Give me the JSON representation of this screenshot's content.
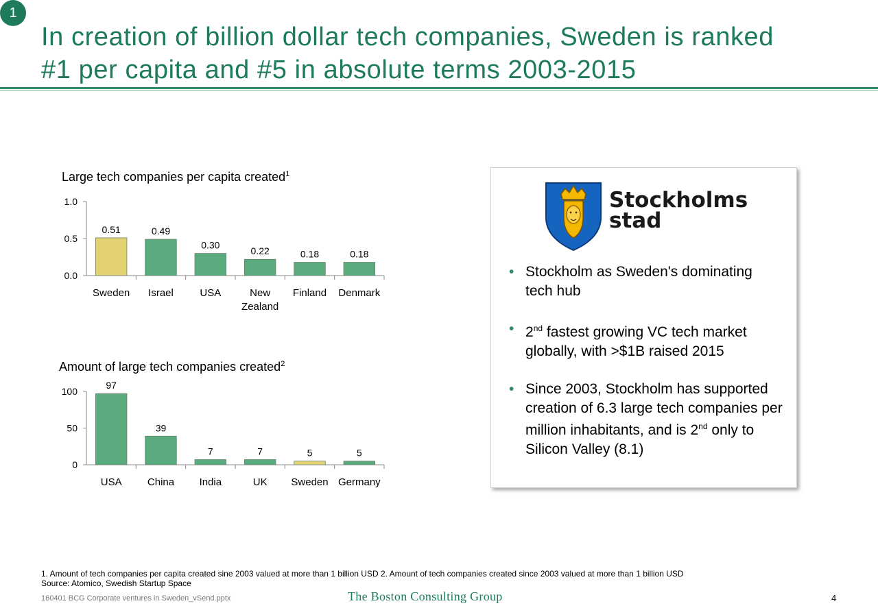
{
  "badge": "1",
  "title_line1": "In creation of billion dollar tech companies, Sweden is ranked",
  "title_line2": "#1 per capita and #5 in absolute terms 2003-2015",
  "colors": {
    "green": "#5aab7e",
    "highlight": "#e3d274",
    "accent": "#1d7a5b"
  },
  "chart_data": [
    {
      "type": "bar",
      "title": "Large tech companies per capita created",
      "title_sup": "1",
      "categories": [
        "Sweden",
        "Israel",
        "USA",
        "New Zealand",
        "Finland",
        "Denmark"
      ],
      "category_lines": [
        [
          "Sweden"
        ],
        [
          "Israel"
        ],
        [
          "USA"
        ],
        [
          "New",
          "Zealand"
        ],
        [
          "Finland"
        ],
        [
          "Denmark"
        ]
      ],
      "values": [
        0.51,
        0.49,
        0.3,
        0.22,
        0.18,
        0.18
      ],
      "value_labels": [
        "0.51",
        "0.49",
        "0.30",
        "0.22",
        "0.18",
        "0.18"
      ],
      "highlight": "Sweden",
      "ylim": [
        0,
        1.0
      ],
      "yticks": [
        0.0,
        0.5,
        1.0
      ],
      "ytick_labels": [
        "0.0",
        "0.5",
        "1.0"
      ],
      "grid": false
    },
    {
      "type": "bar",
      "title": "Amount of large tech companies created",
      "title_sup": "2",
      "categories": [
        "USA",
        "China",
        "India",
        "UK",
        "Sweden",
        "Germany"
      ],
      "category_lines": [
        [
          "USA"
        ],
        [
          "China"
        ],
        [
          "India"
        ],
        [
          "UK"
        ],
        [
          "Sweden"
        ],
        [
          "Germany"
        ]
      ],
      "values": [
        97,
        39,
        7,
        7,
        5,
        5
      ],
      "value_labels": [
        "97",
        "39",
        "7",
        "7",
        "5",
        "5"
      ],
      "highlight": "Sweden",
      "ylim": [
        0,
        100
      ],
      "yticks": [
        0,
        50,
        100
      ],
      "ytick_labels": [
        "0",
        "50",
        "100"
      ],
      "grid": false
    }
  ],
  "panel": {
    "logo_line1": "Stockholms",
    "logo_line2": "stad",
    "bullet1": "Stockholm as Sweden's dominating tech hub",
    "bullet2_pre": "2",
    "bullet2_sup": "nd",
    "bullet2_post": " fastest growing VC tech market globally, with >$1B raised 2015",
    "bullet3_pre": "Since 2003, Stockholm has supported creation of 6.3 large tech companies per million inhabitants, and is 2",
    "bullet3_sup": "nd",
    "bullet3_post": " only to Silicon Valley (8.1)"
  },
  "footer": {
    "note1": "1. Amount of tech companies per capita created sine 2003 valued at more than 1 billion USD 2. Amount of tech companies created since 2003 valued at more than 1 billion USD",
    "source": "Source: Atomico, Swedish Startup Space",
    "file": "160401 BCG Corporate ventures in Sweden_vSend.pptx",
    "brand": "The Boston Consulting Group",
    "page": "4"
  }
}
